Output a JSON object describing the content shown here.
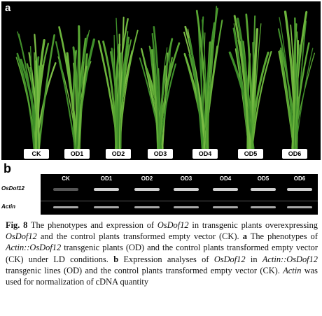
{
  "panel_a": {
    "letter": "a",
    "lines": [
      "CK",
      "OD1",
      "OD2",
      "OD3",
      "OD4",
      "OD5",
      "OD6"
    ]
  },
  "panel_b": {
    "letter": "b",
    "lanes": [
      "CK",
      "OD1",
      "OD2",
      "OD3",
      "OD4",
      "OD5",
      "OD6"
    ],
    "rows": [
      "OsDof12",
      "Actin"
    ]
  },
  "caption": {
    "fig_label": "Fig. 8",
    "t1": " The phenotypes and expression of ",
    "gene1": "OsDof12",
    "t2": " in transgenic plants overexpressing ",
    "gene2": "OsDof12",
    "t3": " and the control plants transformed empty vector (CK). ",
    "a": "a",
    "t4": " The phenotypes of ",
    "construct1": "Actin::OsDof12",
    "t5": " transgenic plants (OD) and the control plants transformed empty vector (CK) under LD conditions. ",
    "b": "b",
    "t6": " Expression analyses of ",
    "gene3": "OsDof12",
    "t7": " in ",
    "construct2": "Actin::OsDof12",
    "t8": " transgenic lines (OD) and the control plants transformed empty vector (CK). ",
    "actin": "Actin",
    "t9": " was used for normalization of cDNA quantity"
  }
}
